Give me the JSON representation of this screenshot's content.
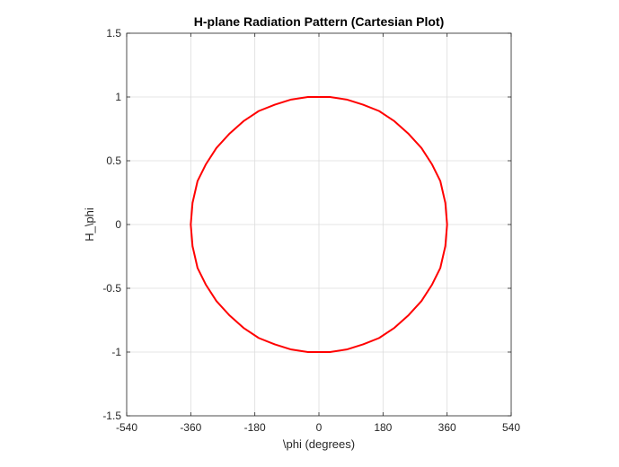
{
  "chart_data": {
    "type": "line",
    "title": "H-plane Radiation Pattern (Cartesian Plot)",
    "xlabel": "\\phi (degrees)",
    "ylabel": "H_\\phi",
    "xlim": [
      -540,
      540
    ],
    "ylim": [
      -1.5,
      1.5
    ],
    "xticks": [
      -540,
      -360,
      -180,
      0,
      180,
      360,
      540
    ],
    "yticks": [
      -1.5,
      -1,
      -0.5,
      0,
      0.5,
      1,
      1.5
    ],
    "xtick_labels": [
      "-540",
      "-360",
      "-180",
      "0",
      "180",
      "360",
      "540"
    ],
    "ytick_labels": [
      "-1.5",
      "-1",
      "-0.5",
      "0",
      "0.5",
      "1",
      "1.5"
    ],
    "grid": true,
    "series": [
      {
        "color": "#ff0000",
        "x": [
          360,
          355,
          341,
          318,
          288,
          252,
          212,
          169,
          124,
          78,
          31,
          0,
          -31,
          -78,
          -124,
          -169,
          -212,
          -252,
          -288,
          -318,
          -341,
          -355,
          -360,
          -355,
          -341,
          -318,
          -288,
          -252,
          -212,
          -169,
          -124,
          -78,
          -31,
          0,
          31,
          78,
          124,
          169,
          212,
          252,
          288,
          318,
          341,
          355,
          360
        ],
        "y": [
          0,
          0.17,
          0.34,
          0.47,
          0.6,
          0.71,
          0.81,
          0.89,
          0.94,
          0.98,
          1.0,
          1.0,
          1.0,
          0.98,
          0.94,
          0.89,
          0.81,
          0.71,
          0.6,
          0.47,
          0.34,
          0.17,
          0,
          -0.17,
          -0.34,
          -0.47,
          -0.6,
          -0.71,
          -0.81,
          -0.89,
          -0.94,
          -0.98,
          -1.0,
          -1.0,
          -1.0,
          -0.98,
          -0.94,
          -0.89,
          -0.81,
          -0.71,
          -0.6,
          -0.47,
          -0.34,
          -0.17,
          0
        ]
      }
    ]
  }
}
